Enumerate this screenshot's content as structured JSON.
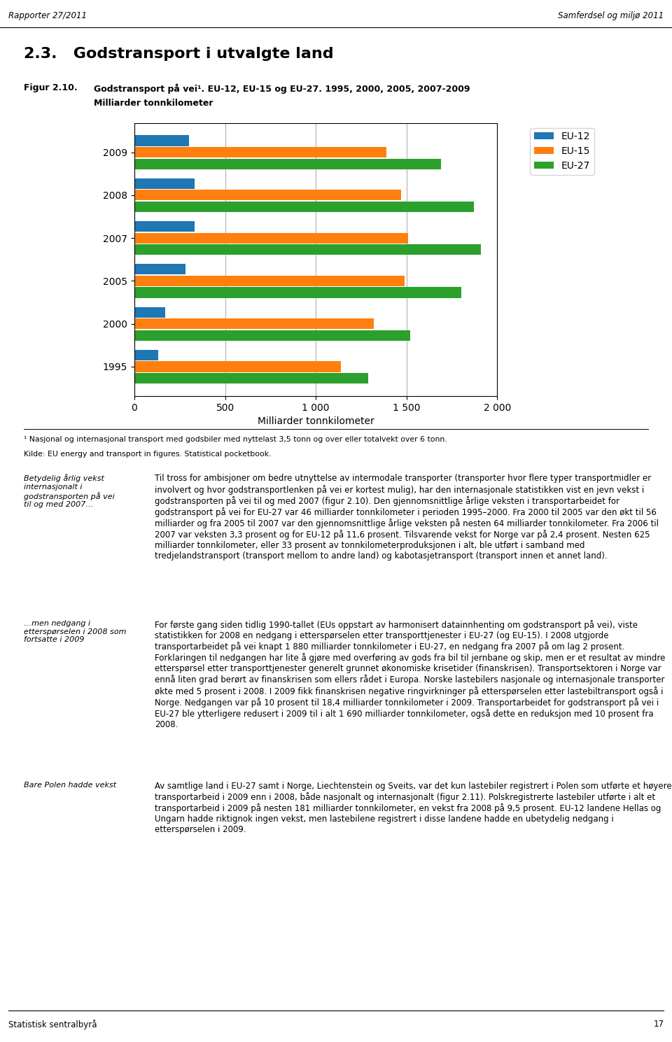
{
  "chart_data": {
    "type": "bar",
    "orientation": "horizontal",
    "title": "Godstransport på vei¹. EU-12, EU-15 og EU-27. 1995, 2000, 2005, 2007-2009",
    "subtitle": "Milliarder tonnkilometer",
    "x_label": "Milliarder tonnkilometer",
    "categories": [
      "1995",
      "2000",
      "2005",
      "2007",
      "2008",
      "2009"
    ],
    "series": [
      {
        "name": "EU-12",
        "values": [
          130,
          170,
          280,
          330,
          330,
          300
        ]
      },
      {
        "name": "EU-15",
        "values": [
          1140,
          1320,
          1490,
          1510,
          1470,
          1390
        ]
      },
      {
        "name": "EU-27",
        "values": [
          1290,
          1520,
          1800,
          1910,
          1870,
          1690
        ]
      }
    ],
    "xlim": [
      0,
      2000
    ],
    "xticks": [
      0,
      500,
      {
        "value": 1000,
        "label": "1 000"
      },
      {
        "value": 1500,
        "label": "1 500"
      },
      {
        "value": 2000,
        "label": "2 000"
      }
    ],
    "grid": true,
    "legend": "upper right",
    "annotations": [
      "Rapporter 27/2011",
      "Samferdsel og miljø 2011",
      "2.3.   Godstransport i utvalgte land",
      "Figur 2.10.",
      "¹ Nasjonal og internasjonal transport med godsbiler med nyttelast 3,5 tonn og over eller totalvekt over 6 tonn.",
      "Kilde: EU energy and transport in figures. Statistical pocketbook.",
      "Betydelig årlig vekst\ninternasjonalt i\ngodstransporten på vei\ntil og med 2007…",
      "Til tross for ambisjoner om bedre utnyttelse av intermodale transporter (transporter hvor flere typer transportmidler er involvert og hvor godstransportlenken på vei er kortest mulig), har den internasjonale statistikken vist en jevn vekst i godstransporten på vei til og med 2007 (figur 2.10). Den gjennomsnittlige årlige veksten i transportarbeidet for godstransport på vei for EU-27 var 46 milliarder tonnkilometer i perioden 1995–2000. Fra 2000 til 2005 var den økt til 56 milliarder og fra 2005 til 2007 var den gjennomsnittlige årlige veksten på nesten 64 milliarder tonnkilometer. Fra 2006 til 2007 var veksten 3,3 prosent og for EU-12 på 11,6 prosent. Tilsvarende vekst for Norge var på 2,4 prosent. Nesten 625 milliarder tonnkilometer, eller 33 prosent av tonnkilometerproduksjonen i alt, ble utført i samband med tredjelandstransport (transport mellom to andre land) og kabotasjetransport (transport innen et annet land).",
      "…men nedgang i\netterspørselen i 2008 som\nfortsatte i 2009",
      "For første gang siden tidlig 1990-tallet (EUs oppstart av harmonisert datainnhenting om godstransport på vei), viste statistikken for 2008 en nedgang i etterspørselen etter transporttjenester i EU-27 (og EU-15). I 2008 utgjorde transportarbeidet på vei knapt 1 880 milliarder tonnkilometer i EU-27, en nedgang fra 2007 på om lag 2 prosent. Forklaringen til nedgangen har lite å gjøre med overføring av gods fra bil til jernbane og skip, men er et resultat av mindre etterspørsel etter transporttjenester generelt grunnet økonomiske krisetider (finanskrisen). Transportsektoren i Norge var ennå liten grad berørt av finanskrisen som ellers rådet i Europa. Norske lastebilers nasjonale og internasjonale transporter økte med 5 prosent i 2008. I 2009 fikk finanskrisen negative ringvirkninger på etterspørselen etter lastebiltransport også i Norge. Nedgangen var på 10 prosent til 18,4 milliarder tonnkilometer i 2009. Transportarbeidet for godstransport på vei i EU-27 ble ytterligere redusert i 2009 til i alt 1 690 milliarder tonnkilometer, også dette en reduksjon med 10 prosent fra 2008.",
      "Bare Polen hadde vekst",
      "Av samtlige land i EU-27 samt i Norge, Liechtenstein og Sveits, var det kun lastebiler registrert i Polen som utførte et høyere transportarbeid i 2009 enn i 2008, både nasjonalt og internasjonalt (figur 2.11). Polskregistrerte lastebiler utførte i alt et transportarbeid i 2009 på nesten 181 milliarder tonnkilometer, en vekst fra 2008 på 9,5 prosent. EU-12 landene Hellas og Ungarn hadde riktignok ingen vekst, men lastebilene registrert i disse landene hadde en ubetydelig nedgang i etterspørselen i 2009.",
      "Statistisk sentralbyrå",
      "17"
    ]
  }
}
